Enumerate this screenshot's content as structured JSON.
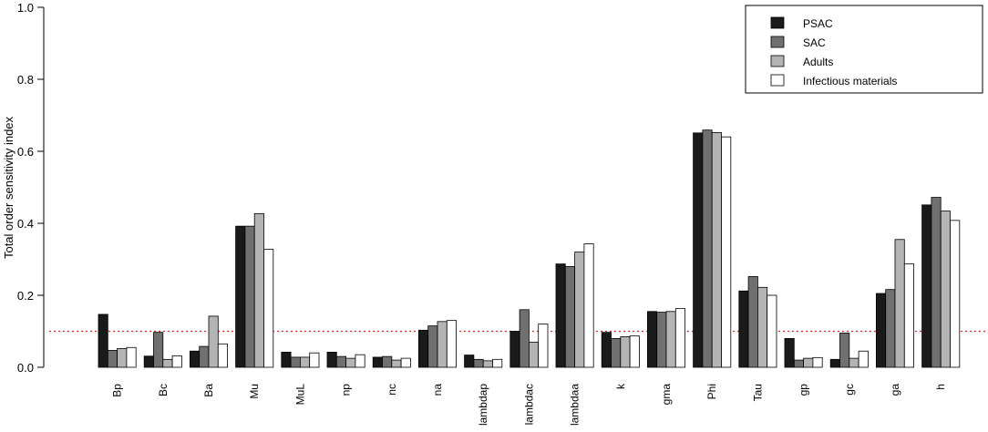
{
  "chart_data": {
    "type": "bar",
    "title": "",
    "xlabel": "",
    "ylabel": "Total order sensitivity index",
    "ylim": [
      0,
      1.0
    ],
    "yticks": [
      "0.0",
      "0.2",
      "0.4",
      "0.6",
      "0.8",
      "1.0"
    ],
    "grid": false,
    "legend_position": "top-right",
    "reference_line": {
      "y": 0.1,
      "color": "#e8211d",
      "style": "dotted"
    },
    "categories": [
      "Bp",
      "Bc",
      "Ba",
      "Mu",
      "MuL",
      "np",
      "nc",
      "na",
      "lambdap",
      "lambdac",
      "lambdaa",
      "k",
      "gma",
      "Phi",
      "Tau",
      "gp",
      "gc",
      "ga",
      "h"
    ],
    "series": [
      {
        "name": "PSAC",
        "color": "#1a1a1a",
        "values": [
          0.147,
          0.031,
          0.045,
          0.392,
          0.042,
          0.042,
          0.028,
          0.103,
          0.034,
          0.1,
          0.287,
          0.097,
          0.155,
          0.651,
          0.212,
          0.08,
          0.022,
          0.205,
          0.451
        ]
      },
      {
        "name": "SAC",
        "color": "#707070",
        "values": [
          0.047,
          0.097,
          0.058,
          0.392,
          0.028,
          0.03,
          0.03,
          0.115,
          0.022,
          0.16,
          0.28,
          0.08,
          0.153,
          0.659,
          0.252,
          0.02,
          0.095,
          0.216,
          0.472
        ]
      },
      {
        "name": "Adults",
        "color": "#b4b4b4",
        "values": [
          0.052,
          0.022,
          0.142,
          0.427,
          0.028,
          0.025,
          0.02,
          0.127,
          0.018,
          0.07,
          0.32,
          0.085,
          0.155,
          0.652,
          0.222,
          0.025,
          0.025,
          0.355,
          0.434
        ]
      },
      {
        "name": "Infectious materials",
        "color": "#ffffff",
        "values": [
          0.055,
          0.032,
          0.065,
          0.328,
          0.04,
          0.035,
          0.025,
          0.13,
          0.022,
          0.12,
          0.343,
          0.087,
          0.163,
          0.64,
          0.2,
          0.027,
          0.045,
          0.287,
          0.408
        ]
      }
    ]
  }
}
